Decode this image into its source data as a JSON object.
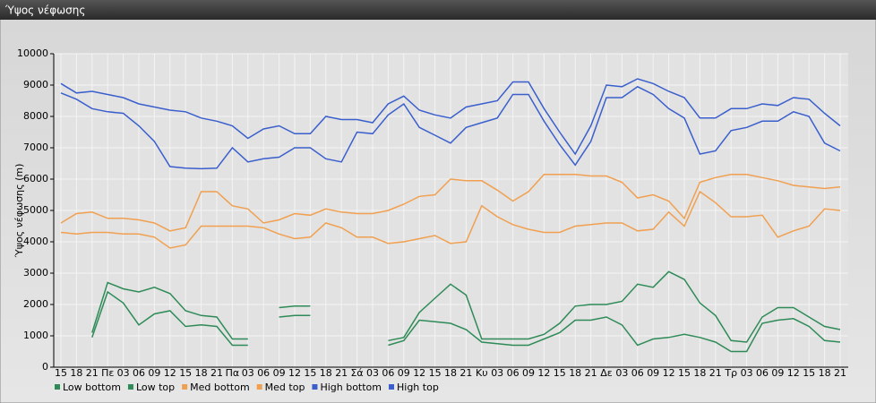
{
  "chart_data": {
    "type": "line",
    "title": "Ύψος νέφωσης",
    "y_label": "Ύψος νέφωσης (m)",
    "categories": [
      "15",
      "18",
      "21",
      "Πε",
      "03",
      "06",
      "09",
      "12",
      "15",
      "18",
      "21",
      "Πα",
      "03",
      "06",
      "09",
      "12",
      "15",
      "18",
      "21",
      "Σά",
      "03",
      "06",
      "09",
      "12",
      "15",
      "18",
      "21",
      "Κυ",
      "03",
      "06",
      "09",
      "12",
      "15",
      "18",
      "21",
      "Δε",
      "03",
      "06",
      "09",
      "12",
      "15",
      "18",
      "21",
      "Τρ",
      "03",
      "06",
      "09",
      "12",
      "15",
      "18",
      "21"
    ],
    "ylim": [
      0,
      10000
    ],
    "yticks": [
      0,
      1000,
      2000,
      3000,
      4000,
      5000,
      6000,
      7000,
      8000,
      9000,
      10000
    ],
    "grid": true,
    "legend": "bottom-left",
    "series": [
      {
        "name": "Low bottom",
        "color": "#2e8b57",
        "values": [
          null,
          null,
          950,
          2400,
          2050,
          1350,
          1700,
          1800,
          1300,
          1350,
          1300,
          700,
          700,
          null,
          1600,
          1650,
          1650,
          null,
          null,
          null,
          null,
          700,
          850,
          1500,
          1450,
          1400,
          1200,
          800,
          750,
          700,
          700,
          900,
          1100,
          1500,
          1500,
          1600,
          1350,
          700,
          900,
          950,
          1050,
          950,
          800,
          500,
          500,
          1400,
          1500,
          1550,
          1300,
          850,
          800
        ]
      },
      {
        "name": "Low top",
        "color": "#2e8b57",
        "values": [
          null,
          null,
          1100,
          2700,
          2500,
          2400,
          2550,
          2350,
          1800,
          1650,
          1600,
          900,
          900,
          null,
          1900,
          1950,
          1950,
          null,
          null,
          null,
          null,
          850,
          950,
          1750,
          2200,
          2650,
          2300,
          900,
          900,
          900,
          900,
          1050,
          1400,
          1950,
          2000,
          2000,
          2100,
          2650,
          2550,
          3050,
          2800,
          2050,
          1650,
          850,
          800,
          1600,
          1900,
          1900,
          1600,
          1300,
          1200
        ]
      },
      {
        "name": "Med bottom",
        "color": "#f0a050",
        "values": [
          4300,
          4250,
          4300,
          4300,
          4250,
          4250,
          4150,
          3800,
          3900,
          4500,
          4500,
          4500,
          4500,
          4450,
          4250,
          4100,
          4150,
          4600,
          4450,
          4150,
          4150,
          3950,
          4000,
          4100,
          4200,
          3950,
          4000,
          5150,
          4800,
          4550,
          4400,
          4300,
          4300,
          4500,
          4550,
          4600,
          4600,
          4350,
          4400,
          4950,
          4500,
          5600,
          5250,
          4800,
          4800,
          4850,
          4150,
          4350,
          4500,
          5050,
          5000
        ]
      },
      {
        "name": "Med top",
        "color": "#f0a050",
        "values": [
          4600,
          4900,
          4950,
          4750,
          4750,
          4700,
          4600,
          4350,
          4450,
          5600,
          5600,
          5150,
          5050,
          4600,
          4700,
          4900,
          4850,
          5050,
          4950,
          4900,
          4900,
          5000,
          5200,
          5450,
          5500,
          6000,
          5950,
          5950,
          5650,
          5300,
          5600,
          6150,
          6150,
          6150,
          6100,
          6100,
          5900,
          5400,
          5500,
          5300,
          4750,
          5900,
          6050,
          6150,
          6150,
          6050,
          5950,
          5800,
          5750,
          5700,
          5750
        ]
      },
      {
        "name": "High bottom",
        "color": "#3a5fcd",
        "values": [
          8750,
          8550,
          8250,
          8150,
          8100,
          7700,
          7200,
          6400,
          6350,
          6330,
          6350,
          7000,
          6550,
          6650,
          6700,
          7000,
          7000,
          6650,
          6550,
          7500,
          7450,
          8050,
          8400,
          7650,
          7400,
          7150,
          7650,
          7800,
          7950,
          8700,
          8700,
          7850,
          7100,
          6450,
          7200,
          8600,
          8600,
          8950,
          8700,
          8250,
          7950,
          6800,
          6900,
          7550,
          7650,
          7850,
          7850,
          8150,
          8000,
          7150,
          6900
        ]
      },
      {
        "name": "High top",
        "color": "#3a5fcd",
        "values": [
          9050,
          8750,
          8800,
          8700,
          8600,
          8400,
          8300,
          8200,
          8150,
          7950,
          7850,
          7700,
          7300,
          7600,
          7700,
          7450,
          7450,
          8000,
          7900,
          7900,
          7800,
          8400,
          8650,
          8200,
          8050,
          7950,
          8300,
          8400,
          8500,
          9100,
          9100,
          8250,
          7500,
          6800,
          7700,
          9000,
          8950,
          9200,
          9050,
          8800,
          8600,
          7950,
          7950,
          8250,
          8250,
          8400,
          8350,
          8600,
          8550,
          8100,
          7700
        ]
      }
    ]
  }
}
